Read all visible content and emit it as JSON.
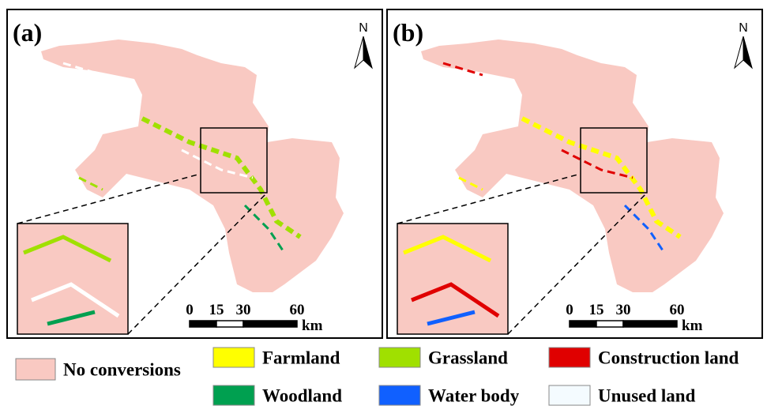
{
  "panels": [
    {
      "label": "(a)",
      "north": "N",
      "scale": {
        "ticks": [
          0,
          15,
          30,
          60
        ],
        "unit": "km"
      }
    },
    {
      "label": "(b)",
      "north": "N",
      "scale": {
        "ticks": [
          0,
          15,
          30,
          60
        ],
        "unit": "km"
      }
    }
  ],
  "legend": [
    {
      "name": "No conversions",
      "color": "#f9c9c2"
    },
    {
      "name": "Farmland",
      "color": "#ffff00"
    },
    {
      "name": "Grassland",
      "color": "#a0e000"
    },
    {
      "name": "Construction land",
      "color": "#e00000"
    },
    {
      "name": "Woodland",
      "color": "#00a050"
    },
    {
      "name": "Water body",
      "color": "#1060ff"
    },
    {
      "name": "Unused land",
      "color": "#f4fbff"
    }
  ]
}
